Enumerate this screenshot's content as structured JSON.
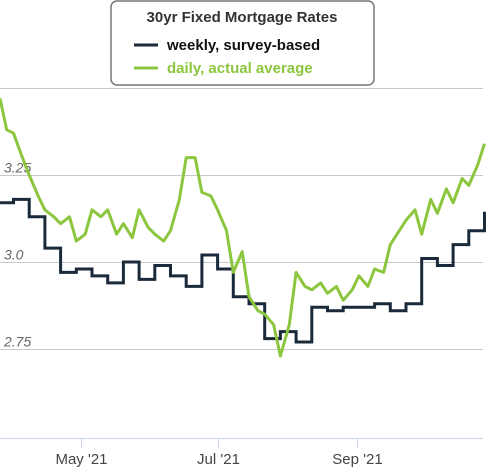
{
  "chart_data": {
    "type": "line",
    "title": "",
    "legend": {
      "title": "30yr Fixed Mortgage Rates",
      "placement": "top-center"
    },
    "x_ticks": [
      "May '21",
      "Jul '21",
      "Sep '21"
    ],
    "y_ticks": [
      "2.75",
      "3.0",
      "3.25"
    ],
    "ylim": [
      2.5,
      3.5
    ],
    "grid": true,
    "series": [
      {
        "name": "weekly, survey-based",
        "color": "#1b2a3a",
        "x": [
          "2021-03-26",
          "2021-04-01",
          "2021-04-08",
          "2021-04-15",
          "2021-04-22",
          "2021-04-29",
          "2021-05-06",
          "2021-05-13",
          "2021-05-20",
          "2021-05-27",
          "2021-06-03",
          "2021-06-10",
          "2021-06-17",
          "2021-06-24",
          "2021-07-01",
          "2021-07-08",
          "2021-07-15",
          "2021-07-22",
          "2021-07-29",
          "2021-08-05",
          "2021-08-12",
          "2021-08-19",
          "2021-08-26",
          "2021-09-02",
          "2021-09-09",
          "2021-09-16",
          "2021-09-23",
          "2021-09-30",
          "2021-10-07",
          "2021-10-14",
          "2021-10-21",
          "2021-10-28"
        ],
        "values": [
          3.17,
          3.18,
          3.13,
          3.04,
          2.97,
          2.98,
          2.96,
          2.94,
          3.0,
          2.95,
          2.99,
          2.96,
          2.93,
          3.02,
          2.98,
          2.9,
          2.88,
          2.78,
          2.8,
          2.77,
          2.87,
          2.86,
          2.87,
          2.87,
          2.88,
          2.86,
          2.88,
          3.01,
          2.99,
          3.05,
          3.09,
          3.14
        ]
      },
      {
        "name": "daily, actual average",
        "color": "#8cc63f",
        "x": [
          "2021-03-26",
          "2021-03-29",
          "2021-04-01",
          "2021-04-05",
          "2021-04-08",
          "2021-04-12",
          "2021-04-15",
          "2021-04-19",
          "2021-04-22",
          "2021-04-26",
          "2021-04-29",
          "2021-05-03",
          "2021-05-06",
          "2021-05-10",
          "2021-05-13",
          "2021-05-17",
          "2021-05-20",
          "2021-05-24",
          "2021-05-27",
          "2021-05-31",
          "2021-06-03",
          "2021-06-07",
          "2021-06-10",
          "2021-06-14",
          "2021-06-17",
          "2021-06-21",
          "2021-06-24",
          "2021-06-28",
          "2021-07-01",
          "2021-07-05",
          "2021-07-08",
          "2021-07-12",
          "2021-07-15",
          "2021-07-19",
          "2021-07-22",
          "2021-07-26",
          "2021-07-29",
          "2021-08-02",
          "2021-08-05",
          "2021-08-09",
          "2021-08-12",
          "2021-08-16",
          "2021-08-19",
          "2021-08-23",
          "2021-08-26",
          "2021-08-30",
          "2021-09-02",
          "2021-09-06",
          "2021-09-09",
          "2021-09-13",
          "2021-09-16",
          "2021-09-20",
          "2021-09-23",
          "2021-09-27",
          "2021-09-30",
          "2021-10-04",
          "2021-10-07",
          "2021-10-11",
          "2021-10-14",
          "2021-10-18",
          "2021-10-21",
          "2021-10-25",
          "2021-10-28"
        ],
        "values": [
          3.47,
          3.38,
          3.37,
          3.3,
          3.25,
          3.19,
          3.15,
          3.13,
          3.11,
          3.13,
          3.06,
          3.08,
          3.15,
          3.13,
          3.15,
          3.08,
          3.11,
          3.07,
          3.15,
          3.1,
          3.08,
          3.06,
          3.09,
          3.18,
          3.3,
          3.3,
          3.2,
          3.19,
          3.15,
          3.09,
          2.97,
          3.03,
          2.9,
          2.86,
          2.85,
          2.82,
          2.73,
          2.82,
          2.97,
          2.93,
          2.92,
          2.94,
          2.91,
          2.93,
          2.89,
          2.92,
          2.96,
          2.93,
          2.98,
          2.97,
          3.05,
          3.09,
          3.12,
          3.15,
          3.08,
          3.18,
          3.14,
          3.21,
          3.17,
          3.24,
          3.22,
          3.28,
          3.34
        ]
      }
    ]
  }
}
